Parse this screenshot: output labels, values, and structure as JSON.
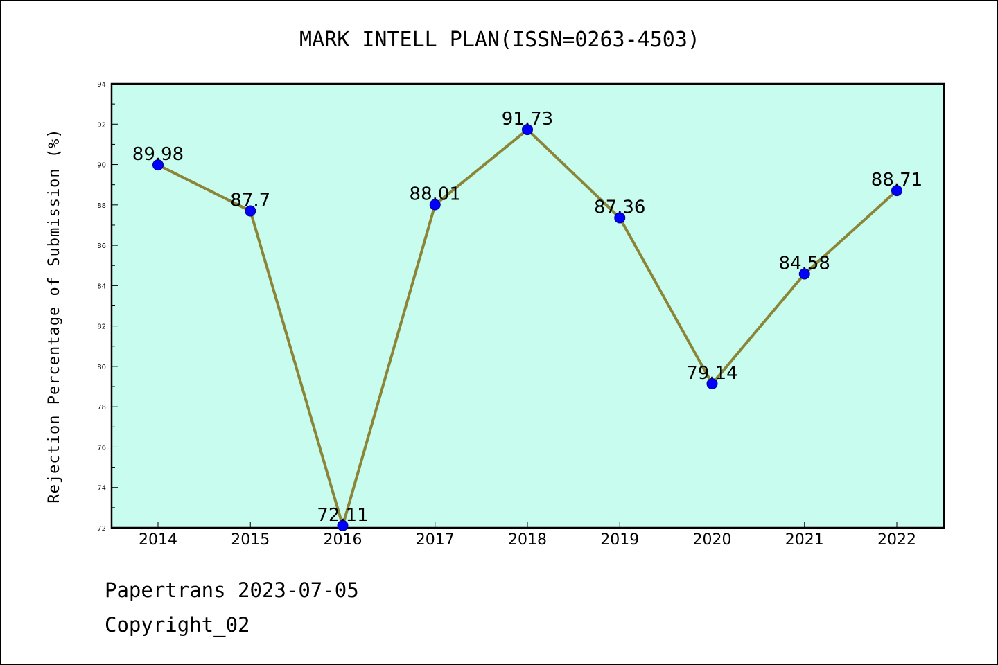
{
  "chart_data": {
    "type": "line",
    "title": "MARK INTELL PLAN(ISSN=0263-4503)",
    "ylabel": "Rejection Percentage of Submission (%)",
    "xlabel": "",
    "categories": [
      "2014",
      "2015",
      "2016",
      "2017",
      "2018",
      "2019",
      "2020",
      "2021",
      "2022"
    ],
    "values": [
      89.98,
      87.7,
      72.11,
      88.01,
      91.73,
      87.36,
      79.14,
      84.58,
      88.71
    ],
    "data_labels": [
      "89.98",
      "87.7",
      "72.11",
      "88.01",
      "91.73",
      "87.36",
      "79.14",
      "84.58",
      "88.71"
    ],
    "ylim": [
      72,
      94
    ],
    "yticks": [
      72,
      74,
      76,
      78,
      80,
      82,
      84,
      86,
      88,
      90,
      92,
      94
    ],
    "grid": false,
    "legend": "none",
    "colors": {
      "plot_background": "#c8fcee",
      "line": "#8b8538",
      "marker": "#0000ff"
    }
  },
  "footer": {
    "line1": "Papertrans 2023-07-05",
    "line2": "Copyright_02"
  }
}
